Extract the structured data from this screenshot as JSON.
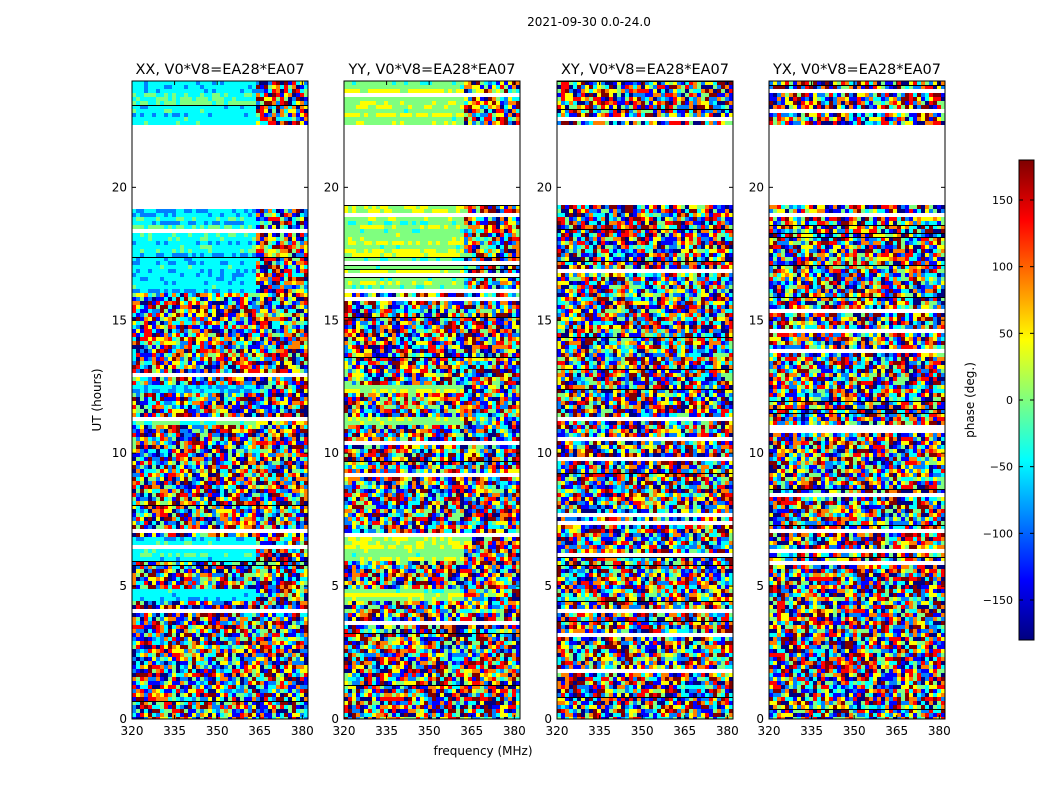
{
  "figure": {
    "suptitle": "2021-09-30 0.0-24.0",
    "xlabel": "frequency (MHz)",
    "ylabel": "UT (hours)",
    "colorbar_label": "phase (deg.)",
    "colorbar_ticks": [
      "150",
      "100",
      "50",
      "0",
      "−50",
      "−100",
      "−150"
    ],
    "colormap": [
      "#00007f",
      "#0000ff",
      "#007fff",
      "#00ffff",
      "#7fff7f",
      "#ffff00",
      "#ff7f00",
      "#ff0000",
      "#7f0000"
    ],
    "frame_color": "#000000",
    "background": "#ffffff"
  },
  "chart_data": {
    "type": "heatmap",
    "value_name": "phase (deg.)",
    "value_range": [
      -180,
      180
    ],
    "colorbar_ticks": [
      150,
      100,
      50,
      0,
      -50,
      -100,
      -150
    ],
    "xlim": [
      320,
      382
    ],
    "ylim": [
      0,
      24
    ],
    "xticks": [
      320,
      335,
      350,
      365,
      380
    ],
    "xtick_labels": [
      "320",
      "335",
      "350",
      "365",
      "380"
    ],
    "yticks": [
      0,
      5,
      10,
      15,
      20
    ],
    "ytick_labels": [
      "0",
      "5",
      "10",
      "15",
      "20"
    ],
    "data_gaps_ut_hours": [
      [
        19.3,
        22.3
      ]
    ],
    "panels": [
      {
        "title": "XX, V0*V8=EA28*EA07",
        "coherent_band_mhz": [
          320,
          363
        ],
        "coherent_phase_deg": -40,
        "coherent_ut_hours": [
          [
            16.0,
            19.3
          ],
          [
            22.3,
            24.0
          ],
          [
            11.0,
            11.3
          ],
          [
            12.2,
            12.6
          ],
          [
            6.0,
            6.8
          ],
          [
            4.5,
            4.9
          ]
        ]
      },
      {
        "title": "YY, V0*V8=EA28*EA07",
        "coherent_band_mhz": [
          320,
          362
        ],
        "coherent_phase_deg": 10,
        "coherent_ut_hours": [
          [
            16.0,
            19.3
          ],
          [
            22.3,
            24.0
          ],
          [
            11.0,
            11.3
          ],
          [
            12.2,
            12.6
          ],
          [
            6.0,
            6.8
          ],
          [
            4.5,
            4.9
          ]
        ]
      },
      {
        "title": "XY, V0*V8=EA28*EA07",
        "coherent_band_mhz": null,
        "coherent_phase_deg": null,
        "coherent_ut_hours": []
      },
      {
        "title": "YX, V0*V8=EA28*EA07",
        "coherent_band_mhz": null,
        "coherent_phase_deg": null,
        "coherent_ut_hours": []
      }
    ]
  }
}
